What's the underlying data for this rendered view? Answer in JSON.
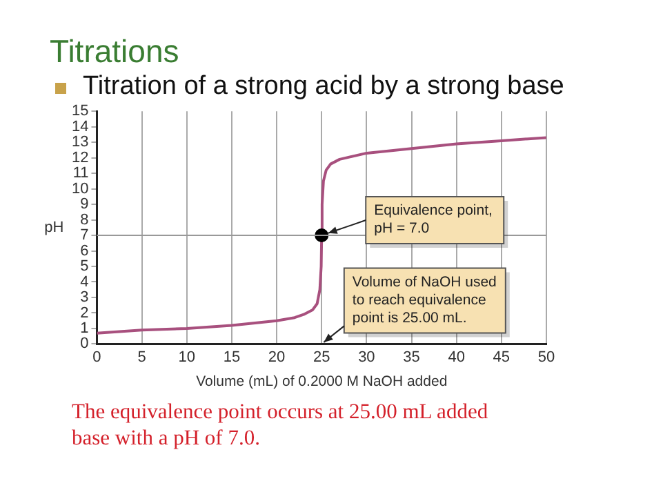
{
  "chart_data": {
    "type": "line",
    "title": "Titrations",
    "subtitle": "Titration of a strong acid by a strong base",
    "xlabel": "Volume (mL) of 0.2000 M NaOH added",
    "ylabel": "pH",
    "xlim": [
      0,
      50
    ],
    "xticks": [
      0,
      5,
      10,
      15,
      20,
      25,
      30,
      35,
      40,
      45,
      50
    ],
    "ylim": [
      0,
      15
    ],
    "yticks": [
      0,
      1,
      2,
      3,
      4,
      5,
      6,
      7,
      8,
      9,
      10,
      11,
      12,
      13,
      14,
      15
    ],
    "grid": "x",
    "legend": false,
    "series": [
      {
        "color": "#a8507e",
        "marker": "none",
        "x": [
          0,
          5,
          10,
          15,
          20,
          22,
          23,
          24,
          24.5,
          24.8,
          24.95,
          25,
          25.05,
          25.2,
          25.5,
          26,
          27,
          30,
          35,
          40,
          45,
          50
        ],
        "values": [
          0.7,
          0.9,
          1.0,
          1.2,
          1.5,
          1.7,
          1.9,
          2.2,
          2.6,
          3.5,
          5.0,
          7.0,
          9.0,
          10.5,
          11.2,
          11.6,
          11.9,
          12.3,
          12.6,
          12.9,
          13.1,
          13.3
        ]
      },
      {
        "type": "scatter",
        "color": "#000000",
        "marker": "circle",
        "x": [
          25
        ],
        "values": [
          7.0
        ]
      }
    ],
    "ref_lines": [
      {
        "axis": "y",
        "value": 7,
        "color": "#999999"
      }
    ],
    "annotations": [
      {
        "text": "Equivalence point,\npH = 7.0",
        "x": 25,
        "y": 7
      },
      "Volume of NaOH used\nto reach equivalence\npoint is 25.00 mL.",
      "The equivalence point occurs at 25.00 mL added base with a pH of 7.0."
    ]
  }
}
